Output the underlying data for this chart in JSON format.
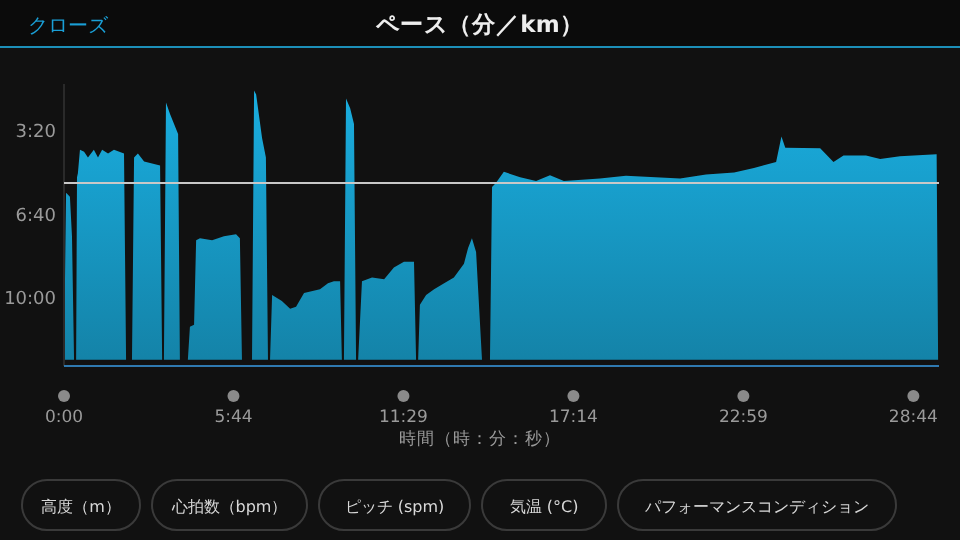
{
  "chart_data": {
    "type": "area",
    "title": "ペース（分／km）",
    "xlabel": "時間（時：分：秒）",
    "annotations": [
      "クローズ",
      "高度（m）",
      "心拍数（bpm）",
      "ピッチ (spm)",
      "気温 (°C)",
      "パフォーマンスコンディション"
    ],
    "x": [
      0,
      0.07,
      0.2,
      0.27,
      0.34,
      0.41,
      0.44,
      0.47,
      0.54,
      0.68,
      0.81,
      1.01,
      1.15,
      1.29,
      1.49,
      1.69,
      2.03,
      2.1,
      2.3,
      2.37,
      2.5,
      2.71,
      3.25,
      3.32,
      3.38,
      3.45,
      3.59,
      3.86,
      3.92,
      4.19,
      4.26,
      4.4,
      4.47,
      4.6,
      5.01,
      5.41,
      5.82,
      5.95,
      6.02,
      6.36,
      6.43,
      6.5,
      6.7,
      6.83,
      6.9,
      6.97,
      7.04,
      7.37,
      7.65,
      7.85,
      8.12,
      8.66,
      8.93,
      9.13,
      9.34,
      9.4,
      9.47,
      9.54,
      9.68,
      9.81,
      9.88,
      9.95,
      10.08,
      10.42,
      10.83,
      11.16,
      11.5,
      11.84,
      11.91,
      11.98,
      12.04,
      12.25,
      12.52,
      12.86,
      13.19,
      13.53,
      13.67,
      13.8,
      13.94,
      14.14,
      14.41,
      14.48,
      14.61,
      14.88,
      15.43,
      15.97,
      16.44,
      16.91,
      18.13,
      19.01,
      20.84,
      21.72,
      22.67,
      23.34,
      24.09,
      24.27,
      24.4,
      25.58,
      26.03,
      26.37,
      27.13,
      27.61,
      28.28,
      29.52,
      29.57
    ],
    "series": [
      {
        "color": "#1aaee0",
        "values": [
          12.5,
          5.84,
          6.0,
          7.57,
          12.5,
          12.5,
          5.22,
          5.06,
          4.12,
          4.2,
          4.43,
          4.12,
          4.43,
          4.12,
          4.27,
          4.12,
          4.27,
          12.5,
          12.5,
          4.43,
          4.27,
          4.59,
          4.75,
          12.5,
          12.5,
          2.24,
          2.71,
          3.49,
          12.5,
          12.5,
          11.18,
          11.1,
          7.73,
          7.65,
          7.73,
          7.57,
          7.49,
          7.65,
          12.5,
          12.5,
          1.76,
          1.92,
          3.65,
          4.43,
          12.5,
          12.5,
          9.92,
          10.16,
          10.47,
          10.39,
          9.84,
          9.69,
          9.45,
          9.37,
          9.37,
          12.5,
          12.5,
          2.08,
          2.47,
          3.1,
          12.5,
          12.5,
          9.37,
          9.22,
          9.29,
          8.82,
          8.59,
          8.59,
          12.5,
          12.5,
          10.31,
          9.92,
          9.69,
          9.45,
          9.22,
          8.67,
          8.04,
          7.65,
          8.2,
          12.5,
          12.5,
          5.61,
          5.45,
          5.0,
          5.22,
          5.37,
          5.14,
          5.37,
          5.27,
          5.16,
          5.27,
          5.11,
          5.03,
          4.85,
          4.61,
          3.59,
          4.04,
          4.06,
          4.61,
          4.35,
          4.35,
          4.49,
          4.38,
          4.3,
          12.5
        ]
      }
    ],
    "xlim": [
      0,
      29.6
    ],
    "ylim": [
      12.75,
      1.5
    ],
    "xticks": [
      {
        "value": 0,
        "label": "0:00"
      },
      {
        "value": 5.733,
        "label": "5:44"
      },
      {
        "value": 11.483,
        "label": "11:29"
      },
      {
        "value": 17.233,
        "label": "17:14"
      },
      {
        "value": 22.983,
        "label": "22:59"
      },
      {
        "value": 28.733,
        "label": "28:44"
      }
    ],
    "yticks": [
      {
        "value": 3.333,
        "label": "3:20"
      },
      {
        "value": 6.667,
        "label": "6:40"
      },
      {
        "value": 10,
        "label": "10:00"
      }
    ],
    "ref_lines": [
      {
        "axis": "y",
        "value": 5.45,
        "color": "#c8c8c8"
      }
    ],
    "legend": false,
    "grid": false,
    "marker": "none"
  }
}
